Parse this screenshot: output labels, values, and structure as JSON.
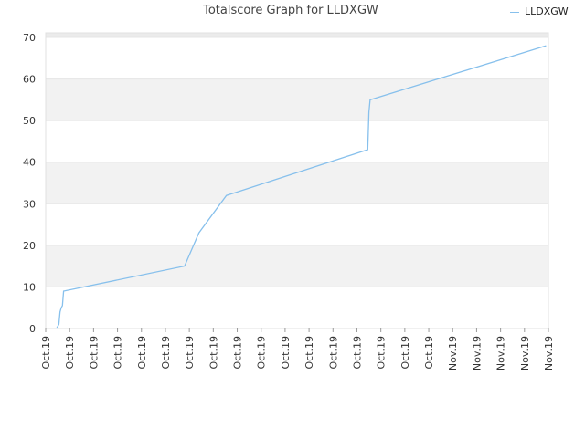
{
  "chart_data": {
    "type": "line",
    "title": "Totalscore Graph for LLDXGW",
    "xlabel": "",
    "ylabel": "",
    "ylim": [
      0,
      70
    ],
    "yticks": [
      0,
      10,
      20,
      30,
      40,
      50,
      60,
      70
    ],
    "x_tick_labels": [
      "Oct.19",
      "Oct.19",
      "Oct.19",
      "Oct.19",
      "Oct.19",
      "Oct.19",
      "Oct.19",
      "Oct.19",
      "Oct.19",
      "Oct.19",
      "Oct.19",
      "Oct.19",
      "Oct.19",
      "Oct.19",
      "Oct.19",
      "Oct.19",
      "Oct.19",
      "Nov.19",
      "Nov.19",
      "Nov.19",
      "Nov.19",
      "Nov.19"
    ],
    "grid": "horizontal bands",
    "legend_position": "top-right",
    "series": [
      {
        "name": "LLDXGW",
        "color": "#87c0ec",
        "points": [
          [
            0.45,
            0
          ],
          [
            0.5,
            0.5
          ],
          [
            0.55,
            1
          ],
          [
            0.6,
            4
          ],
          [
            0.65,
            5
          ],
          [
            0.7,
            5.5
          ],
          [
            0.75,
            9
          ],
          [
            5.8,
            15
          ],
          [
            6.4,
            23
          ],
          [
            7.55,
            32
          ],
          [
            13.45,
            43
          ],
          [
            13.5,
            52
          ],
          [
            13.55,
            55
          ],
          [
            20.9,
            68
          ]
        ]
      }
    ]
  }
}
